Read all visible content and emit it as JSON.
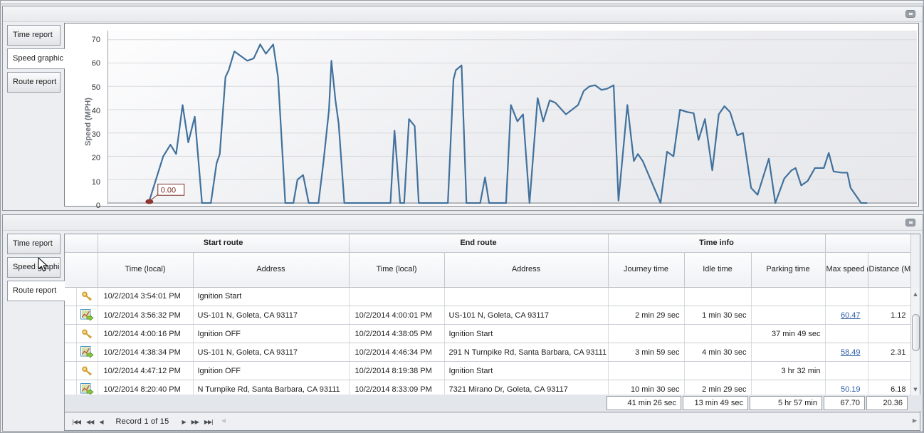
{
  "tabs": [
    "Time report",
    "Speed graphic",
    "Route report"
  ],
  "top_panel": {
    "active_tab": "Speed graphic",
    "chart_data": {
      "type": "line",
      "title": "",
      "xlabel": "",
      "ylabel": "Speed (MPH)",
      "ylim": [
        0,
        70
      ],
      "yticks": [
        70,
        60,
        50,
        40,
        30,
        20,
        10,
        0
      ],
      "grid": "horizontal",
      "legend": "none",
      "line_color": "#41719C",
      "marker_color": "#8B3430",
      "annotation": {
        "text": "0.00"
      },
      "x_unit": "fraction of plot width (time axis labels not visible)",
      "points": [
        [
          0.05,
          0
        ],
        [
          0.068,
          20
        ],
        [
          0.077,
          25
        ],
        [
          0.084,
          21
        ],
        [
          0.092,
          42
        ],
        [
          0.099,
          26
        ],
        [
          0.107,
          37
        ],
        [
          0.116,
          0
        ],
        [
          0.127,
          0
        ],
        [
          0.134,
          17
        ],
        [
          0.138,
          21
        ],
        [
          0.145,
          54
        ],
        [
          0.149,
          57
        ],
        [
          0.156,
          65
        ],
        [
          0.172,
          61
        ],
        [
          0.18,
          62
        ],
        [
          0.188,
          68
        ],
        [
          0.195,
          64
        ],
        [
          0.204,
          68
        ],
        [
          0.21,
          54
        ],
        [
          0.219,
          0
        ],
        [
          0.229,
          0
        ],
        [
          0.234,
          10
        ],
        [
          0.241,
          12
        ],
        [
          0.248,
          0
        ],
        [
          0.26,
          0
        ],
        [
          0.266,
          17
        ],
        [
          0.273,
          40
        ],
        [
          0.276,
          61
        ],
        [
          0.281,
          44
        ],
        [
          0.285,
          34
        ],
        [
          0.292,
          0
        ],
        [
          0.349,
          0
        ],
        [
          0.354,
          31
        ],
        [
          0.361,
          0
        ],
        [
          0.366,
          0
        ],
        [
          0.372,
          36
        ],
        [
          0.379,
          33
        ],
        [
          0.384,
          0
        ],
        [
          0.42,
          0
        ],
        [
          0.427,
          53
        ],
        [
          0.43,
          57
        ],
        [
          0.437,
          59
        ],
        [
          0.443,
          0
        ],
        [
          0.46,
          0
        ],
        [
          0.466,
          11
        ],
        [
          0.471,
          0
        ],
        [
          0.492,
          0
        ],
        [
          0.498,
          42
        ],
        [
          0.506,
          35
        ],
        [
          0.513,
          38
        ],
        [
          0.521,
          0
        ],
        [
          0.531,
          45
        ],
        [
          0.538,
          35
        ],
        [
          0.546,
          44
        ],
        [
          0.553,
          43
        ],
        [
          0.566,
          38
        ],
        [
          0.581,
          42
        ],
        [
          0.588,
          48
        ],
        [
          0.595,
          50
        ],
        [
          0.602,
          50.5
        ],
        [
          0.61,
          48.5
        ],
        [
          0.617,
          49
        ],
        [
          0.625,
          50.5
        ],
        [
          0.631,
          1
        ],
        [
          0.642,
          42
        ],
        [
          0.65,
          18
        ],
        [
          0.655,
          21
        ],
        [
          0.661,
          18
        ],
        [
          0.683,
          0
        ],
        [
          0.691,
          22
        ],
        [
          0.699,
          20
        ],
        [
          0.707,
          40
        ],
        [
          0.716,
          39
        ],
        [
          0.724,
          38.5
        ],
        [
          0.73,
          27
        ],
        [
          0.738,
          36
        ],
        [
          0.747,
          14
        ],
        [
          0.755,
          38
        ],
        [
          0.762,
          41.5
        ],
        [
          0.769,
          39
        ],
        [
          0.778,
          29
        ],
        [
          0.785,
          30
        ],
        [
          0.795,
          6.5
        ],
        [
          0.803,
          3.5
        ],
        [
          0.817,
          19
        ],
        [
          0.825,
          0
        ],
        [
          0.836,
          10.5
        ],
        [
          0.845,
          14
        ],
        [
          0.85,
          15
        ],
        [
          0.857,
          7.5
        ],
        [
          0.865,
          9.5
        ],
        [
          0.874,
          15
        ],
        [
          0.885,
          15
        ],
        [
          0.891,
          21.5
        ],
        [
          0.897,
          13.5
        ],
        [
          0.907,
          13
        ],
        [
          0.914,
          13
        ],
        [
          0.918,
          6.5
        ],
        [
          0.924,
          3.5
        ],
        [
          0.931,
          0
        ],
        [
          0.938,
          0
        ]
      ]
    }
  },
  "bottom_panel": {
    "active_tab": "Route report",
    "table": {
      "group_headers": [
        "Start route",
        "End route",
        "Time info"
      ],
      "columns": [
        "Time (local)",
        "Address",
        "Time (local)",
        "Address",
        "Journey time",
        "Idle time",
        "Parking time",
        "Max speed (MPH)",
        "Distance (Miles)"
      ],
      "rows": [
        {
          "icon": "key",
          "start_time": "10/2/2014 3:54:01 PM",
          "start_address": "Ignition Start",
          "end_time": "",
          "end_address": "",
          "journey_time": "",
          "idle_time": "",
          "parking_time": "",
          "max_speed": "",
          "max_speed_link": false,
          "distance": ""
        },
        {
          "icon": "route",
          "start_time": "10/2/2014 3:56:32 PM",
          "start_address": "US-101 N, Goleta, CA 93117",
          "end_time": "10/2/2014 4:00:01 PM",
          "end_address": "US-101 N, Goleta, CA 93117",
          "journey_time": "2 min 29 sec",
          "idle_time": "1 min 30 sec",
          "parking_time": "",
          "max_speed": "60.47",
          "max_speed_link": true,
          "distance": "1.12"
        },
        {
          "icon": "key",
          "start_time": "10/2/2014 4:00:16 PM",
          "start_address": "Ignition OFF",
          "end_time": "10/2/2014 4:38:05 PM",
          "end_address": "Ignition Start",
          "journey_time": "",
          "idle_time": "",
          "parking_time": "37 min 49 sec",
          "max_speed": "",
          "max_speed_link": false,
          "distance": ""
        },
        {
          "icon": "route",
          "start_time": "10/2/2014 4:38:34 PM",
          "start_address": "US-101 N, Goleta, CA 93117",
          "end_time": "10/2/2014 4:46:34 PM",
          "end_address": "291 N Turnpike Rd, Santa Barbara, CA 93111",
          "journey_time": "3 min 59 sec",
          "idle_time": "4 min 30 sec",
          "parking_time": "",
          "max_speed": "58.49",
          "max_speed_link": true,
          "distance": "2.31"
        },
        {
          "icon": "key",
          "start_time": "10/2/2014 4:47:12 PM",
          "start_address": "Ignition OFF",
          "end_time": "10/2/2014 8:19:38 PM",
          "end_address": "Ignition Start",
          "journey_time": "",
          "idle_time": "",
          "parking_time": "3 hr 32 min",
          "max_speed": "",
          "max_speed_link": false,
          "distance": ""
        },
        {
          "icon": "route",
          "start_time": "10/2/2014 8:20:40 PM",
          "start_address": "N Turnpike Rd, Santa Barbara, CA 93111",
          "end_time": "10/2/2014 8:33:09 PM",
          "end_address": "7321 Mirano Dr, Goleta, CA 93117",
          "journey_time": "10 min 30 sec",
          "idle_time": "2 min 29 sec",
          "parking_time": "",
          "max_speed": "50.19",
          "max_speed_link": false,
          "distance": "6.18"
        }
      ],
      "summary": {
        "journey": "41 min 26 sec",
        "idle": "13 min 49 sec",
        "parking": "5 hr 57 min",
        "max_speed": "67.70",
        "distance": "20.36"
      }
    },
    "pager": {
      "record_label": "Record 1 of 15",
      "first_glyph": "|◀◀",
      "prev_page_glyph": "◀◀",
      "prev_glyph": "◀",
      "next_glyph": "▶",
      "next_page_glyph": "▶▶",
      "last_glyph": "▶▶|"
    }
  }
}
